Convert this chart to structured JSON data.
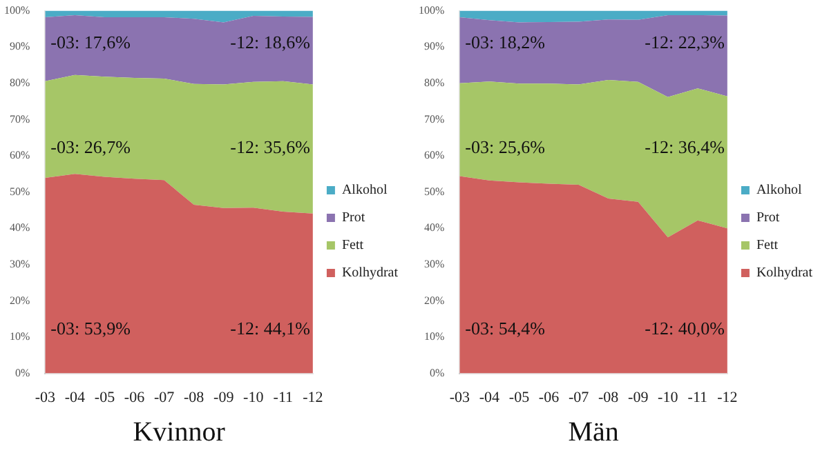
{
  "chart_data": [
    {
      "type": "area",
      "stacked": true,
      "xlabel": "Kvinnor",
      "categories": [
        "-03",
        "-04",
        "-05",
        "-06",
        "-07",
        "-08",
        "-09",
        "-10",
        "-11",
        "-12"
      ],
      "series": [
        {
          "name": "Kolhydrat",
          "color": "#d0605e",
          "values": [
            53.9,
            55.0,
            54.2,
            53.7,
            53.3,
            46.5,
            45.6,
            45.7,
            44.6,
            44.1
          ]
        },
        {
          "name": "Fett",
          "color": "#a6c667",
          "values": [
            26.7,
            27.3,
            27.6,
            27.8,
            28.0,
            33.3,
            34.1,
            34.7,
            36.0,
            35.6
          ]
        },
        {
          "name": "Prot",
          "color": "#8b73b0",
          "values": [
            17.6,
            16.5,
            16.4,
            16.7,
            16.9,
            18.0,
            17.1,
            18.2,
            17.8,
            18.6
          ]
        },
        {
          "name": "Alkohol",
          "color": "#4bacc6",
          "values": [
            1.8,
            1.2,
            1.8,
            1.8,
            1.8,
            2.2,
            3.2,
            1.4,
            1.6,
            1.7
          ]
        }
      ],
      "ylim": [
        0,
        100
      ],
      "yticks": [
        {
          "value": 0,
          "label": "0%"
        },
        {
          "value": 10,
          "label": "10%"
        },
        {
          "value": 20,
          "label": "20%"
        },
        {
          "value": 30,
          "label": "30%"
        },
        {
          "value": 40,
          "label": "40%"
        },
        {
          "value": 50,
          "label": "50%"
        },
        {
          "value": 60,
          "label": "60%"
        },
        {
          "value": 70,
          "label": "70%"
        },
        {
          "value": 80,
          "label": "80%"
        },
        {
          "value": 90,
          "label": "90%"
        },
        {
          "value": 100,
          "label": "100%"
        }
      ],
      "grid": false,
      "legend": "right",
      "annotations": [
        {
          "text": "-03: 53,9%",
          "x": "-03",
          "y": 12
        },
        {
          "text": "-12: 44,1%",
          "x": "-12",
          "y": 12
        },
        {
          "text": "-03: 26,7%",
          "x": "-03",
          "y": 62
        },
        {
          "text": "-12: 35,6%",
          "x": "-12",
          "y": 62
        },
        {
          "text": "-03: 17,6%",
          "x": "-03",
          "y": 91
        },
        {
          "text": "-12: 18,6%",
          "x": "-12",
          "y": 91
        }
      ]
    },
    {
      "type": "area",
      "stacked": true,
      "xlabel": "Män",
      "categories": [
        "-03",
        "-04",
        "-05",
        "-06",
        "-07",
        "-08",
        "-09",
        "-10",
        "-11",
        "-12"
      ],
      "series": [
        {
          "name": "Kolhydrat",
          "color": "#d0605e",
          "values": [
            54.4,
            53.2,
            52.7,
            52.3,
            52.0,
            48.2,
            47.3,
            37.5,
            42.2,
            40.0
          ]
        },
        {
          "name": "Fett",
          "color": "#a6c667",
          "values": [
            25.6,
            27.3,
            27.2,
            27.6,
            27.7,
            32.7,
            33.1,
            38.7,
            36.4,
            36.4
          ]
        },
        {
          "name": "Prot",
          "color": "#8b73b0",
          "values": [
            18.2,
            16.9,
            16.9,
            17.0,
            17.3,
            16.7,
            17.1,
            22.6,
            20.2,
            22.3
          ]
        },
        {
          "name": "Alkohol",
          "color": "#4bacc6",
          "values": [
            1.8,
            2.6,
            3.2,
            3.1,
            3.0,
            2.4,
            2.5,
            1.2,
            1.2,
            1.3
          ]
        }
      ],
      "ylim": [
        0,
        100
      ],
      "yticks": [
        {
          "value": 0,
          "label": "0%"
        },
        {
          "value": 10,
          "label": "10%"
        },
        {
          "value": 20,
          "label": "20%"
        },
        {
          "value": 30,
          "label": "30%"
        },
        {
          "value": 40,
          "label": "40%"
        },
        {
          "value": 50,
          "label": "50%"
        },
        {
          "value": 60,
          "label": "60%"
        },
        {
          "value": 70,
          "label": "70%"
        },
        {
          "value": 80,
          "label": "80%"
        },
        {
          "value": 90,
          "label": "90%"
        },
        {
          "value": 100,
          "label": "100%"
        }
      ],
      "grid": false,
      "legend": "right",
      "annotations": [
        {
          "text": "-03: 54,4%",
          "x": "-03",
          "y": 12
        },
        {
          "text": "-12: 40,0%",
          "x": "-12",
          "y": 12
        },
        {
          "text": "-03: 25,6%",
          "x": "-03",
          "y": 62
        },
        {
          "text": "-12: 36,4%",
          "x": "-12",
          "y": 62
        },
        {
          "text": "-03: 18,2%",
          "x": "-03",
          "y": 91
        },
        {
          "text": "-12: 22,3%",
          "x": "-12",
          "y": 91
        }
      ]
    }
  ]
}
